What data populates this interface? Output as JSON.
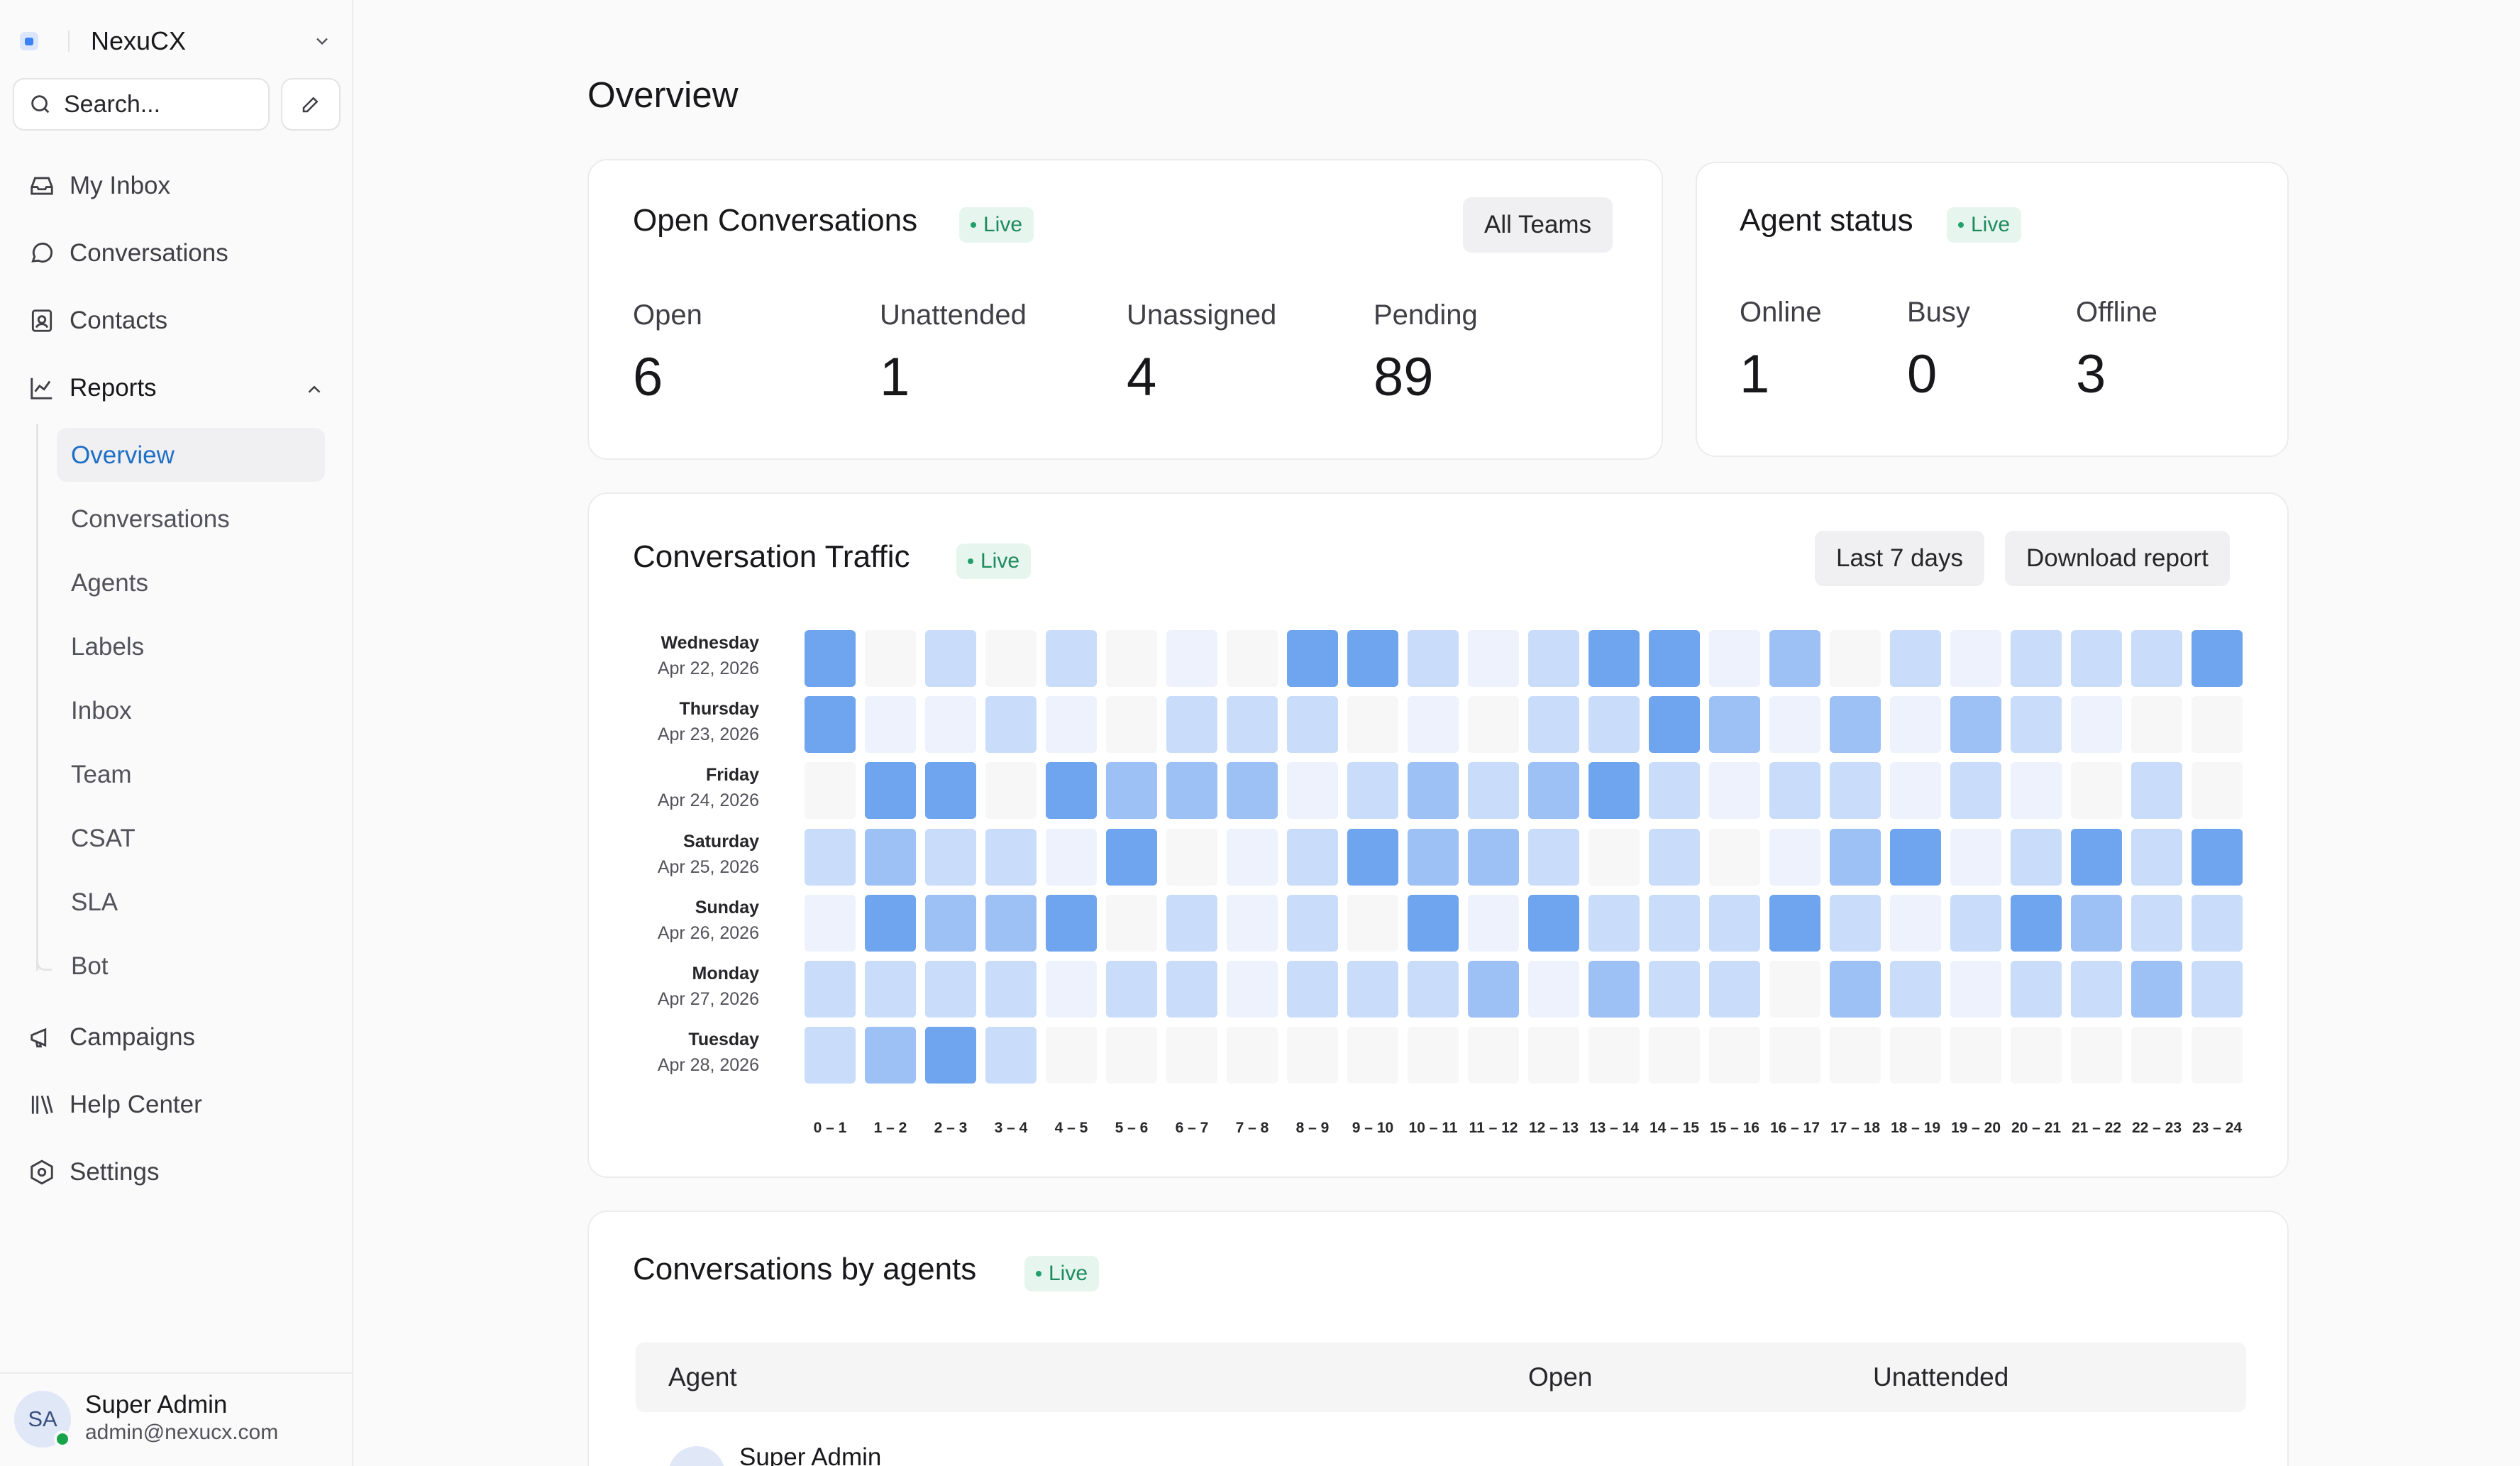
{
  "sidebar": {
    "brand": "NexuCX",
    "search_placeholder": "Search...",
    "nav": {
      "inbox": "My Inbox",
      "conversations": "Conversations",
      "contacts": "Contacts",
      "reports": "Reports",
      "campaigns": "Campaigns",
      "help_center": "Help Center",
      "settings": "Settings"
    },
    "reports_sub": [
      "Overview",
      "Conversations",
      "Agents",
      "Labels",
      "Inbox",
      "Team",
      "CSAT",
      "SLA",
      "Bot"
    ],
    "active_sub": "Overview",
    "user": {
      "initials": "SA",
      "name": "Super Admin",
      "email": "admin@nexucx.com"
    }
  },
  "page": {
    "title": "Overview"
  },
  "open_conversations": {
    "title": "Open Conversations",
    "live": "Live",
    "filter": "All Teams",
    "metrics": [
      {
        "label": "Open",
        "value": "6"
      },
      {
        "label": "Unattended",
        "value": "1"
      },
      {
        "label": "Unassigned",
        "value": "4"
      },
      {
        "label": "Pending",
        "value": "89"
      }
    ]
  },
  "agent_status": {
    "title": "Agent status",
    "live": "Live",
    "metrics": [
      {
        "label": "Online",
        "value": "1"
      },
      {
        "label": "Busy",
        "value": "0"
      },
      {
        "label": "Offline",
        "value": "3"
      }
    ]
  },
  "traffic": {
    "title": "Conversation Traffic",
    "live": "Live",
    "range_button": "Last 7 days",
    "download_button": "Download report",
    "days": [
      {
        "name": "Wednesday",
        "date": "Apr 22, 2026"
      },
      {
        "name": "Thursday",
        "date": "Apr 23, 2026"
      },
      {
        "name": "Friday",
        "date": "Apr 24, 2026"
      },
      {
        "name": "Saturday",
        "date": "Apr 25, 2026"
      },
      {
        "name": "Sunday",
        "date": "Apr 26, 2026"
      },
      {
        "name": "Monday",
        "date": "Apr 27, 2026"
      },
      {
        "name": "Tuesday",
        "date": "Apr 28, 2026"
      }
    ],
    "hours": [
      "0 – 1",
      "1 – 2",
      "2 – 3",
      "3 – 4",
      "4 – 5",
      "5 – 6",
      "6 – 7",
      "7 – 8",
      "8 – 9",
      "9 – 10",
      "10 – 11",
      "11 – 12",
      "12 – 13",
      "13 – 14",
      "14 – 15",
      "15 – 16",
      "16 – 17",
      "17 – 18",
      "18 – 19",
      "19 – 20",
      "20 – 21",
      "21 – 22",
      "22 – 23",
      "23 – 24"
    ],
    "intensity": [
      [
        4,
        0,
        2,
        0,
        2,
        0,
        1,
        0,
        4,
        4,
        2,
        1,
        2,
        4,
        4,
        1,
        3,
        0,
        2,
        1,
        2,
        2,
        2,
        4
      ],
      [
        4,
        1,
        1,
        2,
        1,
        0,
        2,
        2,
        2,
        0,
        1,
        0,
        2,
        2,
        4,
        3,
        1,
        3,
        1,
        3,
        2,
        1,
        0,
        0
      ],
      [
        0,
        4,
        4,
        0,
        4,
        3,
        3,
        3,
        1,
        2,
        3,
        2,
        3,
        4,
        2,
        1,
        2,
        2,
        1,
        2,
        1,
        0,
        2,
        0
      ],
      [
        2,
        3,
        2,
        2,
        1,
        4,
        0,
        1,
        2,
        4,
        3,
        3,
        2,
        0,
        2,
        0,
        1,
        3,
        4,
        1,
        2,
        4,
        2,
        4
      ],
      [
        1,
        4,
        3,
        3,
        4,
        0,
        2,
        1,
        2,
        0,
        4,
        1,
        4,
        2,
        2,
        2,
        4,
        2,
        1,
        2,
        4,
        3,
        2,
        2
      ],
      [
        2,
        2,
        2,
        2,
        1,
        2,
        2,
        1,
        2,
        2,
        2,
        3,
        1,
        3,
        2,
        2,
        0,
        3,
        2,
        1,
        2,
        2,
        3,
        2
      ],
      [
        2,
        3,
        4,
        2,
        0,
        0,
        0,
        0,
        0,
        0,
        0,
        0,
        0,
        0,
        0,
        0,
        0,
        0,
        0,
        0,
        0,
        0,
        0,
        0
      ]
    ],
    "palette": [
      "#f7f7f8",
      "#edf2fd",
      "#c9ddfb",
      "#9dc1f5",
      "#6fa4ee"
    ]
  },
  "by_agents": {
    "title": "Conversations by agents",
    "live": "Live",
    "columns": {
      "agent": "Agent",
      "open": "Open",
      "unattended": "Unattended"
    },
    "rows": [
      {
        "name": "Super Admin"
      }
    ]
  }
}
